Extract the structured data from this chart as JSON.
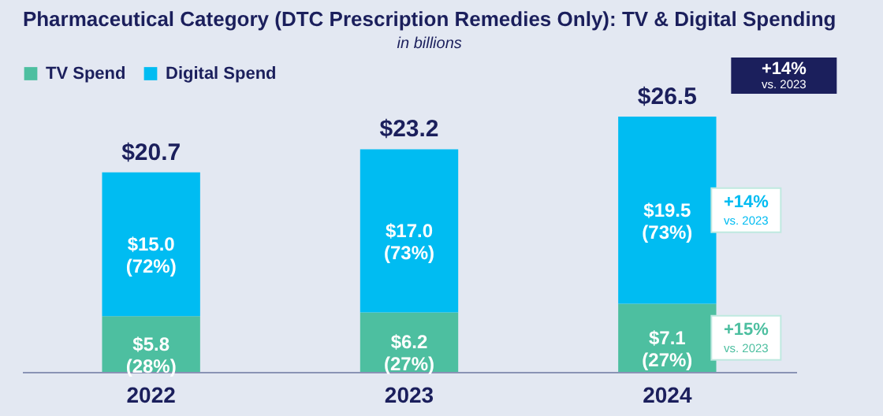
{
  "chart_data": {
    "type": "bar",
    "title": "Pharmaceutical Category (DTC Prescription Remedies Only): TV & Digital Spending",
    "subtitle": "in billions",
    "categories": [
      "2022",
      "2023",
      "2024"
    ],
    "stacked": true,
    "series": [
      {
        "name": "TV Spend",
        "color": "#4dbfa0",
        "values": [
          5.8,
          6.2,
          7.1
        ],
        "value_labels": [
          "$5.8\n(28%)",
          "$6.2\n(27%)",
          "$7.1\n(27%)"
        ]
      },
      {
        "name": "Digital Spend",
        "color": "#00bcf2",
        "values": [
          15.0,
          17.0,
          19.5
        ],
        "value_labels": [
          "$15.0\n(72%)",
          "$17.0\n(73%)",
          "$19.5\n(73%)"
        ]
      }
    ],
    "totals": [
      "$20.7",
      "$23.2",
      "$26.5"
    ],
    "annotations": [
      "+14%\nvs. 2023",
      "+14%\nvs. 2023",
      "+15%\nvs. 2023"
    ],
    "legend": "top",
    "grid": false
  }
}
